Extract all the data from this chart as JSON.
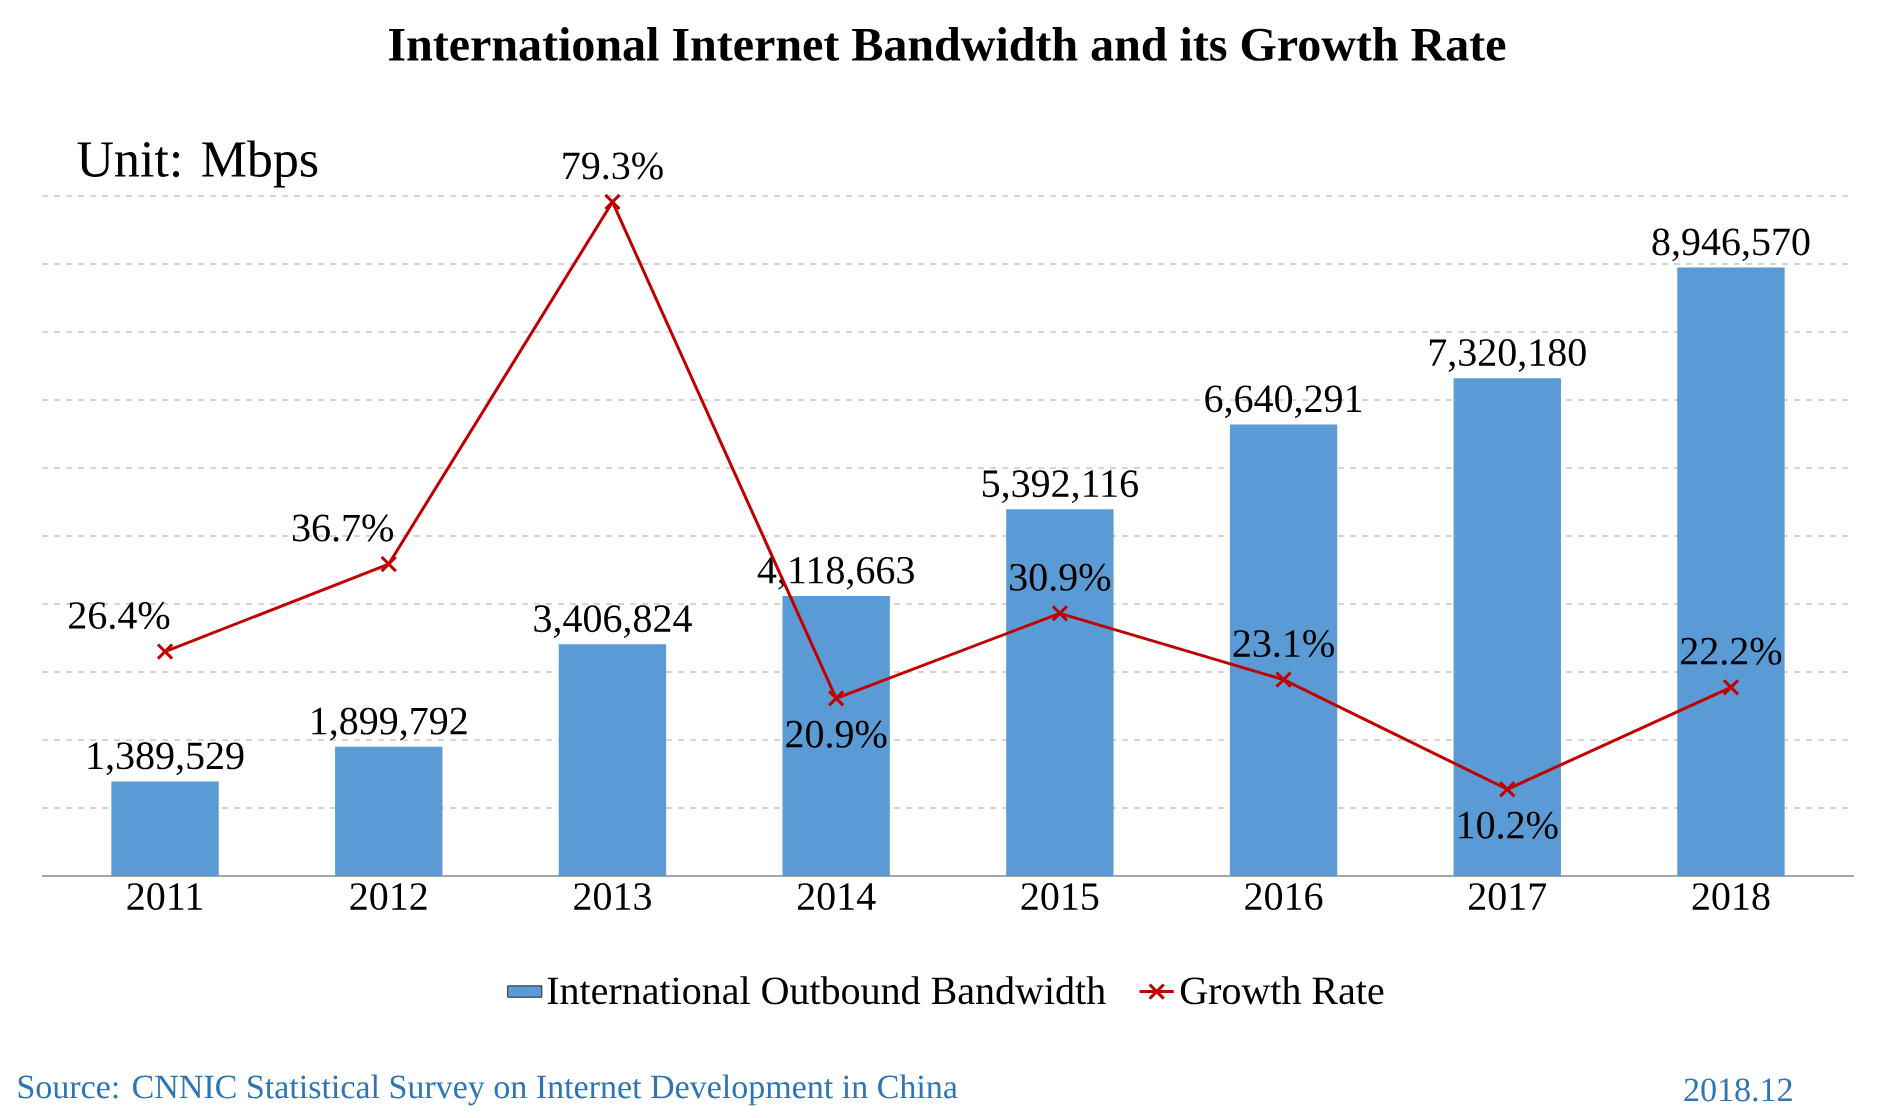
{
  "chart_data": {
    "type": "bar",
    "title": "International Internet Bandwidth and its Growth Rate",
    "categories": [
      "2011",
      "2012",
      "2013",
      "2014",
      "2015",
      "2016",
      "2017",
      "2018"
    ],
    "series": [
      {
        "name": "International Outbound Bandwidth",
        "color": "#5b9bd5",
        "values": [
          1389529,
          1899792,
          3406824,
          4118663,
          5392116,
          6640291,
          7320180,
          8946570
        ],
        "value_labels": [
          "1,389,529",
          "1,899,792",
          "3,406,824",
          "4,118,663",
          "5,392,116",
          "6,640,291",
          "7,320,180",
          "8,946,570"
        ]
      },
      {
        "name": "Growth Rate",
        "type": "line",
        "axis": "y2",
        "color": "#c00000",
        "marker": "cross",
        "values": [
          26.4,
          36.7,
          79.3,
          20.9,
          30.9,
          23.1,
          10.2,
          22.2
        ],
        "value_labels": [
          "26.4%",
          "36.7%",
          "79.3%",
          "20.9%",
          "30.9%",
          "23.1%",
          "10.2%",
          "22.2%"
        ]
      }
    ],
    "ylim": [
      0,
      10000000
    ],
    "yticks": [
      {
        "value": 0,
        "label": null
      },
      {
        "value": 1000000,
        "label": null
      },
      {
        "value": 2000000,
        "label": null
      },
      {
        "value": 3000000,
        "label": null
      },
      {
        "value": 4000000,
        "label": null
      },
      {
        "value": 5000000,
        "label": null
      },
      {
        "value": 6000000,
        "label": null
      },
      {
        "value": 7000000,
        "label": null
      },
      {
        "value": 8000000,
        "label": null
      },
      {
        "value": 9000000,
        "label": null
      },
      {
        "value": 10000000,
        "label": null
      }
    ],
    "y2lim": [
      0,
      80
    ],
    "grid": "y",
    "tick_labels": "x",
    "legend": "bottom",
    "annotations": [
      "Unit: Mbps",
      "Source: CNNIC Statistical Survey on Internet Development in China",
      "2018.12"
    ]
  }
}
